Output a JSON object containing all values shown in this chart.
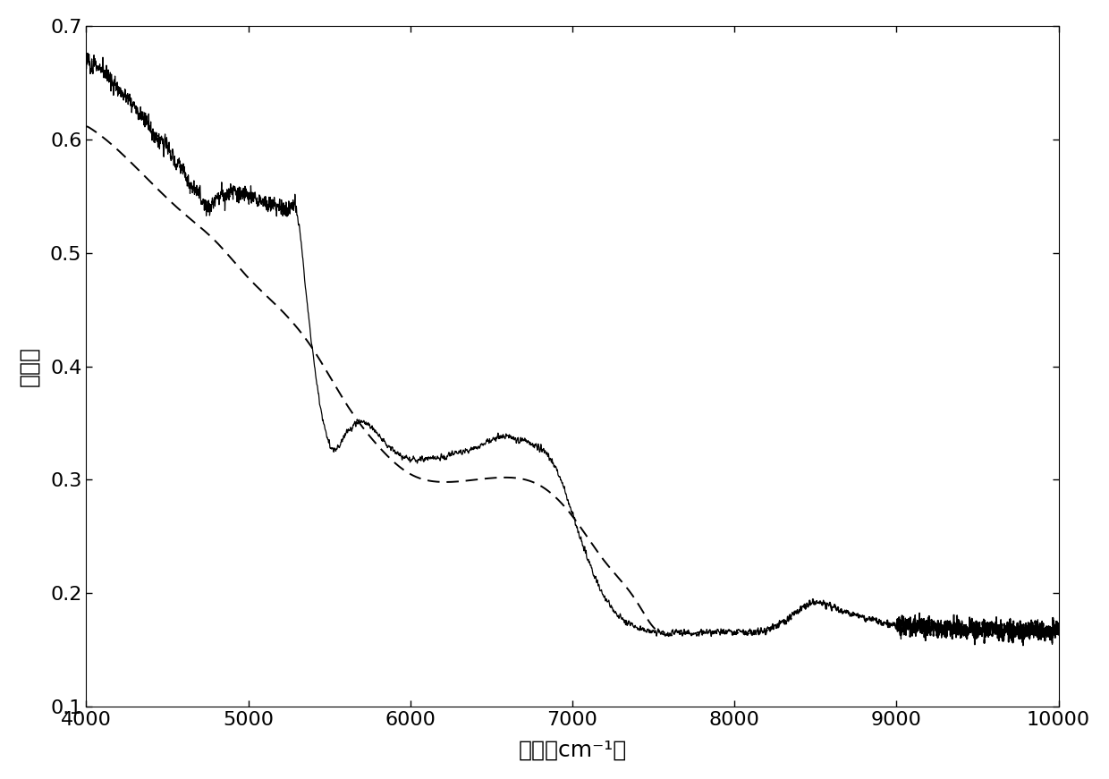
{
  "x_min": 4000,
  "x_max": 10000,
  "y_min": 0.1,
  "y_max": 0.7,
  "xlabel": "波长（cm⁻¹）",
  "ylabel": "吸光度",
  "xticks": [
    4000,
    5000,
    6000,
    7000,
    8000,
    9000,
    10000
  ],
  "yticks": [
    0.1,
    0.2,
    0.3,
    0.4,
    0.5,
    0.6,
    0.7
  ],
  "line_color": "#000000",
  "baseline_color": "#000000",
  "background_color": "#ffffff",
  "xlabel_fontsize": 18,
  "ylabel_fontsize": 18,
  "tick_fontsize": 16
}
